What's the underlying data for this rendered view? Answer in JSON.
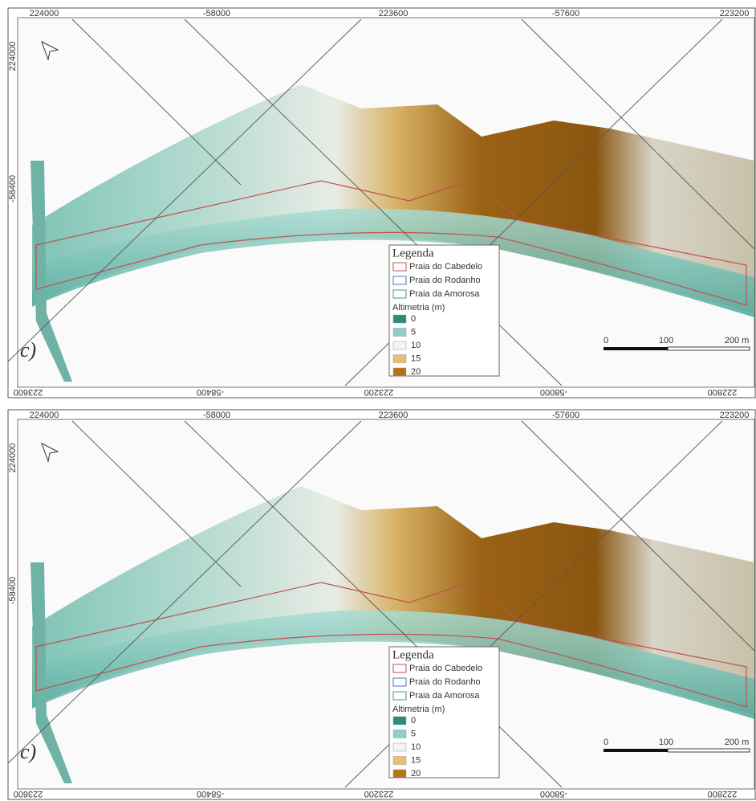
{
  "panels": [
    {
      "top_labels": [
        "224000",
        "-58000",
        "223600",
        "-57600",
        "223200"
      ],
      "left_labels": [
        "224000",
        "-58400"
      ],
      "bottom_labels": [
        "223600",
        "-58400",
        "223200",
        "-58000",
        "222800"
      ],
      "panel_label": "c)",
      "legend": {
        "title": "Legenda",
        "areas": [
          "Praia do Cabedelo",
          "Praia do Rodanho",
          "Praia da Amorosa"
        ],
        "altimetry_title": "Altimetria (m)",
        "classes": [
          "0",
          "5",
          "10",
          "15",
          "20"
        ]
      },
      "scale_bar": [
        "0",
        "100",
        "200 m"
      ]
    },
    {
      "top_labels": [
        "224000",
        "-58000",
        "223600",
        "-57600",
        "223200"
      ],
      "left_labels": [
        "224000",
        "-58400"
      ],
      "bottom_labels": [
        "223600",
        "-58400",
        "223200",
        "-58000",
        "222800"
      ],
      "panel_label": "c)",
      "legend": {
        "title": "Legenda",
        "areas": [
          "Praia do Cabedelo",
          "Praia do Rodanho",
          "Praia da Amorosa"
        ],
        "altimetry_title": "Altimetria (m)",
        "classes": [
          "0",
          "5",
          "10",
          "15",
          "20"
        ]
      },
      "scale_bar": [
        "0",
        "100",
        "200 m"
      ]
    }
  ]
}
